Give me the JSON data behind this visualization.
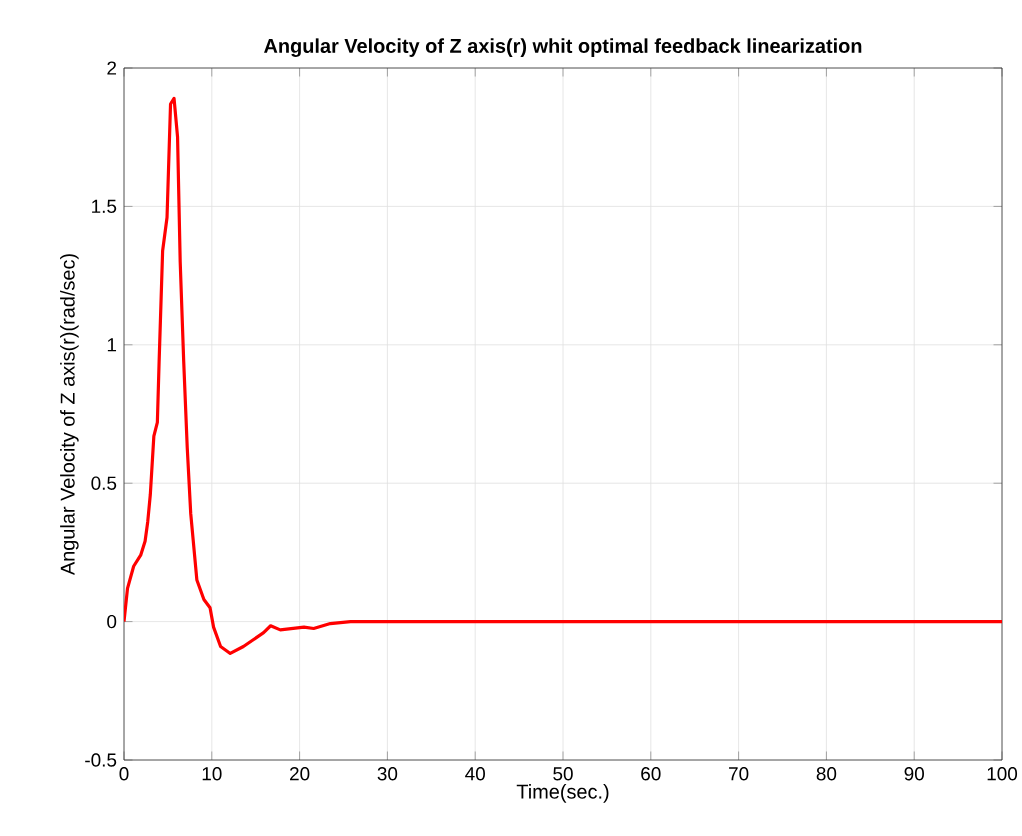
{
  "chart_data": {
    "type": "line",
    "title": "Angular Velocity of Z axis(r) whit optimal feedback linearization",
    "xlabel": "Time(sec.)",
    "ylabel": "Angular Velocity of Z axis(r)(rad/sec)",
    "xlim": [
      0,
      100
    ],
    "ylim": [
      -0.5,
      2
    ],
    "xticks": [
      0,
      10,
      20,
      30,
      40,
      50,
      60,
      70,
      80,
      90,
      100
    ],
    "yticks": [
      -0.5,
      0,
      0.5,
      1,
      1.5,
      2
    ],
    "grid": true,
    "series": [
      {
        "color": "#ff0000",
        "x": [
          0,
          0.4,
          1.1,
          1.9,
          2.4,
          2.7,
          3.0,
          3.4,
          3.8,
          4.0,
          4.4,
          4.9,
          5.3,
          5.7,
          6.1,
          6.4,
          6.8,
          7.2,
          7.6,
          8.3,
          9.1,
          9.8,
          10.2,
          11.0,
          12.1,
          13.6,
          15.9,
          16.7,
          17.8,
          20.5,
          21.6,
          23.5,
          25.8,
          30,
          40,
          50,
          60,
          70,
          80,
          90,
          100
        ],
        "values": [
          0,
          0.12,
          0.2,
          0.24,
          0.29,
          0.36,
          0.46,
          0.67,
          0.72,
          0.94,
          1.34,
          1.46,
          1.87,
          1.89,
          1.75,
          1.3,
          0.94,
          0.63,
          0.39,
          0.15,
          0.08,
          0.05,
          -0.02,
          -0.09,
          -0.115,
          -0.09,
          -0.04,
          -0.015,
          -0.03,
          -0.02,
          -0.025,
          -0.007,
          0,
          0,
          0,
          0,
          0,
          0,
          0,
          0,
          0
        ]
      }
    ]
  }
}
